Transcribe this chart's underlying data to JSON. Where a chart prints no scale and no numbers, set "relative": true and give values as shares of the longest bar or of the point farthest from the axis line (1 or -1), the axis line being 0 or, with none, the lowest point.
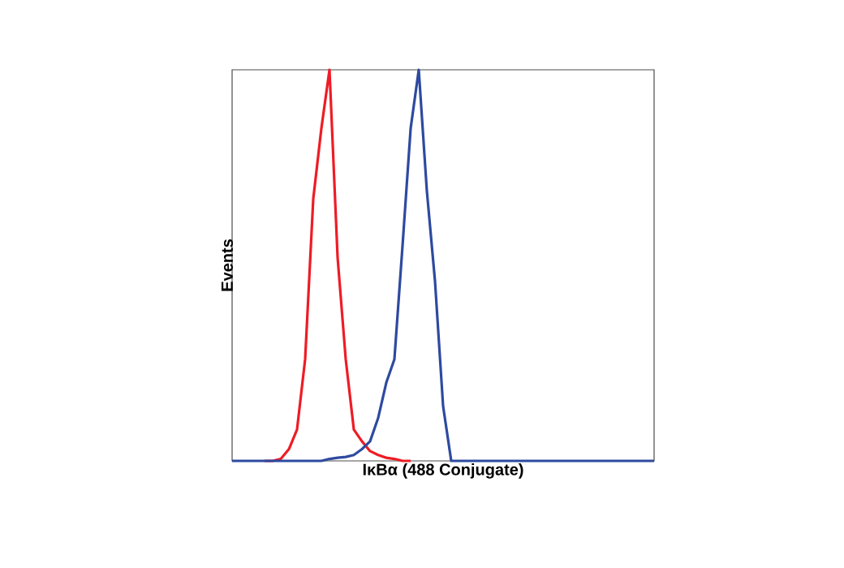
{
  "chart_data": {
    "type": "line",
    "relative": true,
    "xlabel": "IκBα (488 Conjugate)",
    "ylabel": "Events",
    "categories": [
      null,
      null,
      null,
      null,
      null,
      null,
      null,
      null,
      null,
      null,
      null,
      null,
      null,
      null,
      null,
      null,
      null,
      null,
      null,
      null,
      null,
      null,
      null,
      null,
      null,
      null,
      null,
      null,
      null,
      null,
      null,
      null,
      null,
      null,
      null,
      null,
      null,
      null,
      null,
      null,
      null,
      null,
      null,
      null,
      null,
      null,
      null,
      null,
      null,
      null,
      null,
      null,
      null
    ],
    "series": [
      {
        "color": "#ee1c25",
        "values": [
          null,
          null,
          null,
          null,
          0,
          0,
          0.005,
          0.03,
          0.08,
          0.26,
          0.67,
          0.85,
          1,
          0.52,
          0.26,
          0.08,
          0.05,
          0.025,
          0.015,
          0.008,
          0.005,
          0,
          0,
          null,
          null,
          null,
          null,
          null,
          null,
          null,
          null,
          null,
          null,
          null,
          null,
          null,
          null,
          null,
          null,
          null,
          null,
          null,
          null,
          null,
          null,
          null,
          null,
          null,
          null,
          null,
          null,
          null,
          null
        ]
      },
      {
        "color": "#2e4aa0",
        "values": [
          0,
          0,
          0,
          0,
          0,
          0,
          0,
          0,
          0,
          0,
          0,
          0,
          0.005,
          0.008,
          0.01,
          0.015,
          0.03,
          0.05,
          0.11,
          0.2,
          0.26,
          0.55,
          0.85,
          1,
          0.69,
          0.46,
          0.14,
          0,
          0,
          0,
          0,
          0,
          0,
          0,
          0,
          0,
          0,
          0,
          0,
          0,
          0,
          0,
          0,
          0,
          0,
          0,
          0,
          0,
          0,
          0,
          0,
          0,
          0
        ]
      }
    ]
  }
}
